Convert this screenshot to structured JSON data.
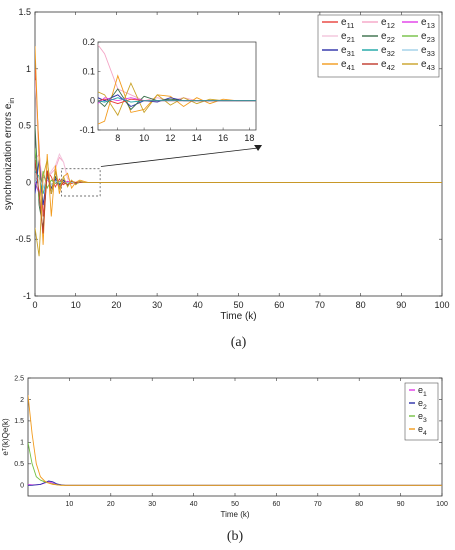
{
  "chart_data": [
    {
      "type": "line",
      "panel_label": "(a)",
      "title": "",
      "xlabel": "Time (k)",
      "ylabel": "synchronization errors e",
      "ylabel_sub": "in",
      "xlim": [
        0,
        100
      ],
      "ylim": [
        -1,
        1.5
      ],
      "xticks": [
        0,
        10,
        20,
        30,
        40,
        50,
        60,
        70,
        80,
        90,
        100
      ],
      "yticks": [
        -1,
        -0.5,
        0,
        0.5,
        1,
        1.5
      ],
      "legend_position": "top-right",
      "series": [
        {
          "name": "e11",
          "label": "e",
          "sub": "11",
          "color": "#e8403a",
          "x": [
            0,
            1,
            2,
            3,
            4,
            5,
            6,
            7,
            8,
            9,
            10,
            11,
            12,
            13,
            14,
            15,
            16,
            17,
            18,
            20,
            100
          ],
          "y": [
            1.0,
            0.3,
            -0.3,
            0.1,
            0.05,
            -0.04,
            0.03,
            -0.02,
            0.01,
            -0.01,
            0.0,
            0.0,
            0.0,
            0,
            0,
            0,
            0,
            0,
            0,
            0,
            0
          ]
        },
        {
          "name": "e12",
          "label": "e",
          "sub": "12",
          "color": "#f4a6c6",
          "x": [
            0,
            1,
            2,
            3,
            4,
            5,
            6,
            7,
            8,
            9,
            10,
            11,
            12,
            13,
            14,
            15,
            16,
            17,
            18,
            20,
            100
          ],
          "y": [
            0.2,
            0.25,
            -0.05,
            0.05,
            0.08,
            0.12,
            0.22,
            0.18,
            0.04,
            0.0,
            -0.01,
            0.0,
            0.0,
            0,
            0,
            0,
            0,
            0,
            0,
            0,
            0
          ]
        },
        {
          "name": "e13",
          "label": "e",
          "sub": "13",
          "color": "#e23be8",
          "x": [
            0,
            1,
            2,
            3,
            4,
            5,
            6,
            7,
            8,
            9,
            10,
            11,
            12,
            13,
            14,
            15,
            16,
            17,
            18,
            20,
            100
          ],
          "y": [
            0.0,
            -0.1,
            0.05,
            0.02,
            -0.02,
            0.01,
            -0.03,
            0.0,
            0.01,
            0.0,
            0.0,
            0.0,
            0.0,
            0,
            0,
            0,
            0,
            0,
            0,
            0,
            0
          ]
        },
        {
          "name": "e21",
          "label": "e",
          "sub": "21",
          "color": "#f2c4dc",
          "x": [
            0,
            1,
            2,
            3,
            4,
            5,
            6,
            7,
            8,
            9,
            10,
            11,
            12,
            13,
            14,
            15,
            16,
            17,
            18,
            20,
            100
          ],
          "y": [
            0.9,
            0.2,
            -0.2,
            0.05,
            0.1,
            0.15,
            0.25,
            0.18,
            0.03,
            0.0,
            0.0,
            0.0,
            0.0,
            0,
            0,
            0,
            0,
            0,
            0,
            0,
            0
          ]
        },
        {
          "name": "e22",
          "label": "e",
          "sub": "22",
          "color": "#3a6f4a",
          "x": [
            0,
            1,
            2,
            3,
            4,
            5,
            6,
            7,
            8,
            9,
            10,
            11,
            12,
            13,
            14,
            15,
            16,
            17,
            18,
            20,
            100
          ],
          "y": [
            0.5,
            -0.2,
            -0.4,
            0.1,
            -0.1,
            0.05,
            -0.02,
            0.02,
            -0.03,
            0.01,
            -0.01,
            0.0,
            0.0,
            0,
            0,
            0,
            0,
            0,
            0,
            0,
            0
          ]
        },
        {
          "name": "e23",
          "label": "e",
          "sub": "23",
          "color": "#74c044",
          "x": [
            0,
            1,
            2,
            3,
            4,
            5,
            6,
            7,
            8,
            9,
            10,
            11,
            12,
            13,
            14,
            15,
            16,
            17,
            18,
            20,
            100
          ],
          "y": [
            0.3,
            -0.15,
            0.1,
            -0.05,
            0.02,
            -0.01,
            0.01,
            0.0,
            0.0,
            0.0,
            0.0,
            0.0,
            0.0,
            0,
            0,
            0,
            0,
            0,
            0,
            0,
            0
          ]
        },
        {
          "name": "e31",
          "label": "e",
          "sub": "31",
          "color": "#2a2fa8",
          "x": [
            0,
            1,
            2,
            3,
            4,
            5,
            6,
            7,
            8,
            9,
            10,
            11,
            12,
            13,
            14,
            15,
            16,
            17,
            18,
            20,
            100
          ],
          "y": [
            -0.1,
            0.2,
            -0.2,
            0.05,
            -0.05,
            0.03,
            -0.05,
            0.02,
            -0.02,
            0.01,
            -0.01,
            0.01,
            0.0,
            0,
            0,
            0,
            0,
            0,
            0,
            0,
            0
          ]
        },
        {
          "name": "e32",
          "label": "e",
          "sub": "32",
          "color": "#1aa6a6",
          "x": [
            0,
            1,
            2,
            3,
            4,
            5,
            6,
            7,
            8,
            9,
            10,
            11,
            12,
            13,
            14,
            15,
            16,
            17,
            18,
            20,
            100
          ],
          "y": [
            0.1,
            0.05,
            -0.1,
            0.05,
            -0.02,
            0.01,
            -0.01,
            0.0,
            0.0,
            0.0,
            0.0,
            0.0,
            0.0,
            0,
            0,
            0,
            0,
            0,
            0,
            0,
            0
          ]
        },
        {
          "name": "e33",
          "label": "e",
          "sub": "33",
          "color": "#9fd0e8",
          "x": [
            0,
            1,
            2,
            3,
            4,
            5,
            6,
            7,
            8,
            9,
            10,
            11,
            12,
            13,
            14,
            15,
            16,
            17,
            18,
            20,
            100
          ],
          "y": [
            0.0,
            0.05,
            -0.05,
            0.03,
            -0.02,
            0.01,
            0.0,
            0.0,
            0.0,
            0.0,
            0.0,
            0.0,
            0.0,
            0,
            0,
            0,
            0,
            0,
            0,
            0,
            0
          ]
        },
        {
          "name": "e41",
          "label": "e",
          "sub": "41",
          "color": "#f29b1d",
          "x": [
            0,
            1,
            2,
            3,
            4,
            5,
            6,
            7,
            8,
            9,
            10,
            11,
            12,
            13,
            14,
            15,
            16,
            17,
            18,
            20,
            100
          ],
          "y": [
            1.2,
            0.2,
            -0.55,
            0.25,
            -0.3,
            0.15,
            -0.1,
            0.05,
            0.08,
            -0.05,
            0.0,
            0.02,
            0.01,
            0,
            0,
            0,
            0,
            0,
            0,
            0,
            0
          ]
        },
        {
          "name": "e42",
          "label": "e",
          "sub": "42",
          "color": "#c0392b",
          "x": [
            0,
            1,
            2,
            3,
            4,
            5,
            6,
            7,
            8,
            9,
            10,
            11,
            12,
            13,
            14,
            15,
            16,
            17,
            18,
            20,
            100
          ],
          "y": [
            0.2,
            -0.1,
            -0.45,
            0.1,
            -0.1,
            0.1,
            -0.05,
            0.0,
            -0.02,
            0.01,
            0.0,
            0.0,
            0.0,
            0,
            0,
            0,
            0,
            0,
            0,
            0,
            0
          ]
        },
        {
          "name": "e43",
          "label": "e",
          "sub": "43",
          "color": "#c9a227",
          "x": [
            0,
            1,
            2,
            3,
            4,
            5,
            6,
            7,
            8,
            9,
            10,
            11,
            12,
            13,
            14,
            15,
            16,
            17,
            18,
            20,
            100
          ],
          "y": [
            -0.4,
            -0.65,
            0.05,
            0.2,
            -0.1,
            0.1,
            -0.06,
            0.05,
            -0.04,
            0.02,
            -0.02,
            0.01,
            0.0,
            0,
            0,
            0,
            0,
            0,
            0,
            0,
            0
          ]
        }
      ],
      "inset": {
        "xlim": [
          6.5,
          18.5
        ],
        "ylim": [
          -0.1,
          0.2
        ],
        "xticks": [
          8,
          10,
          12,
          14,
          16,
          18
        ],
        "yticks": [
          -0.1,
          0,
          0.1,
          0.2
        ],
        "series": [
          {
            "color": "#f4a6c6",
            "x": [
              6.5,
              7,
              8,
              9,
              10,
              11,
              12,
              13,
              14,
              15,
              16,
              17,
              18,
              18.5
            ],
            "y": [
              0.19,
              0.16,
              0.04,
              0.02,
              0.0,
              0.01,
              0.0,
              0.01,
              0.0,
              0.0,
              0.0,
              0.0,
              0.0,
              0.0
            ]
          },
          {
            "color": "#f29b1d",
            "x": [
              6.5,
              7,
              8,
              9,
              10,
              11,
              12,
              13,
              14,
              15,
              16,
              17,
              18,
              18.5
            ],
            "y": [
              -0.08,
              -0.07,
              0.085,
              -0.04,
              -0.03,
              0.02,
              0.015,
              -0.02,
              0.01,
              -0.01,
              0.005,
              0.0,
              0.0,
              0.0
            ]
          },
          {
            "color": "#c9a227",
            "x": [
              6.5,
              7,
              8,
              9,
              10,
              11,
              12,
              13,
              14,
              15,
              16,
              17,
              18,
              18.5
            ],
            "y": [
              0.03,
              0.02,
              -0.05,
              0.06,
              -0.04,
              0.02,
              -0.015,
              0.01,
              -0.01,
              0.005,
              0.0,
              0.0,
              0.0,
              0.0
            ]
          },
          {
            "color": "#2a2fa8",
            "x": [
              6.5,
              7,
              8,
              9,
              10,
              11,
              12,
              13,
              14,
              15,
              16,
              17,
              18,
              18.5
            ],
            "y": [
              0.01,
              0.0,
              0.02,
              -0.02,
              0.0,
              -0.005,
              0.01,
              0.0,
              0.0,
              0.0,
              0.0,
              0.0,
              0.0,
              0.0
            ]
          },
          {
            "color": "#3a6f4a",
            "x": [
              6.5,
              7,
              8,
              9,
              10,
              11,
              12,
              13,
              14,
              15,
              16,
              17,
              18,
              18.5
            ],
            "y": [
              0.0,
              -0.02,
              0.04,
              -0.03,
              0.015,
              0.0,
              0.005,
              0.0,
              0.0,
              0.0,
              0.0,
              0.0,
              0.0,
              0.0
            ]
          },
          {
            "color": "#e23be8",
            "x": [
              6.5,
              7,
              8,
              9,
              10,
              11,
              12,
              13,
              14,
              15,
              16,
              17,
              18,
              18.5
            ],
            "y": [
              -0.01,
              0.01,
              0.0,
              0.01,
              0.0,
              0.0,
              0.0,
              0.0,
              0.0,
              0.0,
              0.0,
              0.0,
              0.0,
              0.0
            ]
          },
          {
            "color": "#e8403a",
            "x": [
              6.5,
              7,
              8,
              9,
              10,
              11,
              12,
              13,
              14,
              15,
              16,
              17,
              18,
              18.5
            ],
            "y": [
              0.0,
              0.005,
              -0.01,
              0.005,
              0.0,
              0.0,
              0.0,
              0.0,
              0.0,
              0.0,
              0.0,
              0.0,
              0.0,
              0.0
            ]
          },
          {
            "color": "#1aa6a6",
            "x": [
              6.5,
              7,
              8,
              9,
              10,
              11,
              12,
              13,
              14,
              15,
              16,
              17,
              18,
              18.5
            ],
            "y": [
              0.0,
              -0.005,
              0.01,
              -0.005,
              0.0,
              0.0,
              0.0,
              0.0,
              0.0,
              0.0,
              0.0,
              0.0,
              0.0,
              0.0
            ]
          }
        ]
      }
    },
    {
      "type": "line",
      "panel_label": "(b)",
      "title": "",
      "xlabel": "Time (k)",
      "ylabel": "eᵀ(k)Qe(k)",
      "xlim": [
        0,
        100
      ],
      "ylim": [
        -0.25,
        2.5
      ],
      "xticks": [
        10,
        20,
        30,
        40,
        50,
        60,
        70,
        80,
        90,
        100
      ],
      "yticks": [
        0,
        0.5,
        1,
        1.5,
        2,
        2.5
      ],
      "legend_position": "top-right",
      "series": [
        {
          "name": "e1",
          "label": "e",
          "sub": "1",
          "color": "#e23be8",
          "x": [
            0,
            1,
            2,
            3,
            4,
            5,
            6,
            7,
            8,
            9,
            10,
            100
          ],
          "y": [
            0.02,
            0.01,
            0.01,
            0.02,
            0.05,
            0.08,
            0.05,
            0.02,
            0.01,
            0,
            0,
            0
          ]
        },
        {
          "name": "e2",
          "label": "e",
          "sub": "2",
          "color": "#2a2fa8",
          "x": [
            0,
            1,
            2,
            3,
            4,
            5,
            6,
            7,
            8,
            9,
            10,
            100
          ],
          "y": [
            0.0,
            0.0,
            0.01,
            0.02,
            0.06,
            0.1,
            0.08,
            0.03,
            0.01,
            0,
            0,
            0
          ]
        },
        {
          "name": "e3",
          "label": "e",
          "sub": "3",
          "color": "#74c044",
          "x": [
            0,
            1,
            2,
            3,
            4,
            5,
            6,
            7,
            8,
            9,
            10,
            100
          ],
          "y": [
            1.0,
            0.5,
            0.2,
            0.12,
            0.08,
            0.05,
            0.03,
            0.01,
            0,
            0,
            0,
            0
          ]
        },
        {
          "name": "e4",
          "label": "e",
          "sub": "4",
          "color": "#f29b1d",
          "x": [
            0,
            1,
            2,
            3,
            4,
            5,
            6,
            7,
            8,
            9,
            10,
            100
          ],
          "y": [
            2.1,
            1.2,
            0.5,
            0.2,
            0.1,
            0.05,
            0.02,
            0.01,
            0,
            0,
            0,
            0
          ]
        }
      ]
    }
  ]
}
